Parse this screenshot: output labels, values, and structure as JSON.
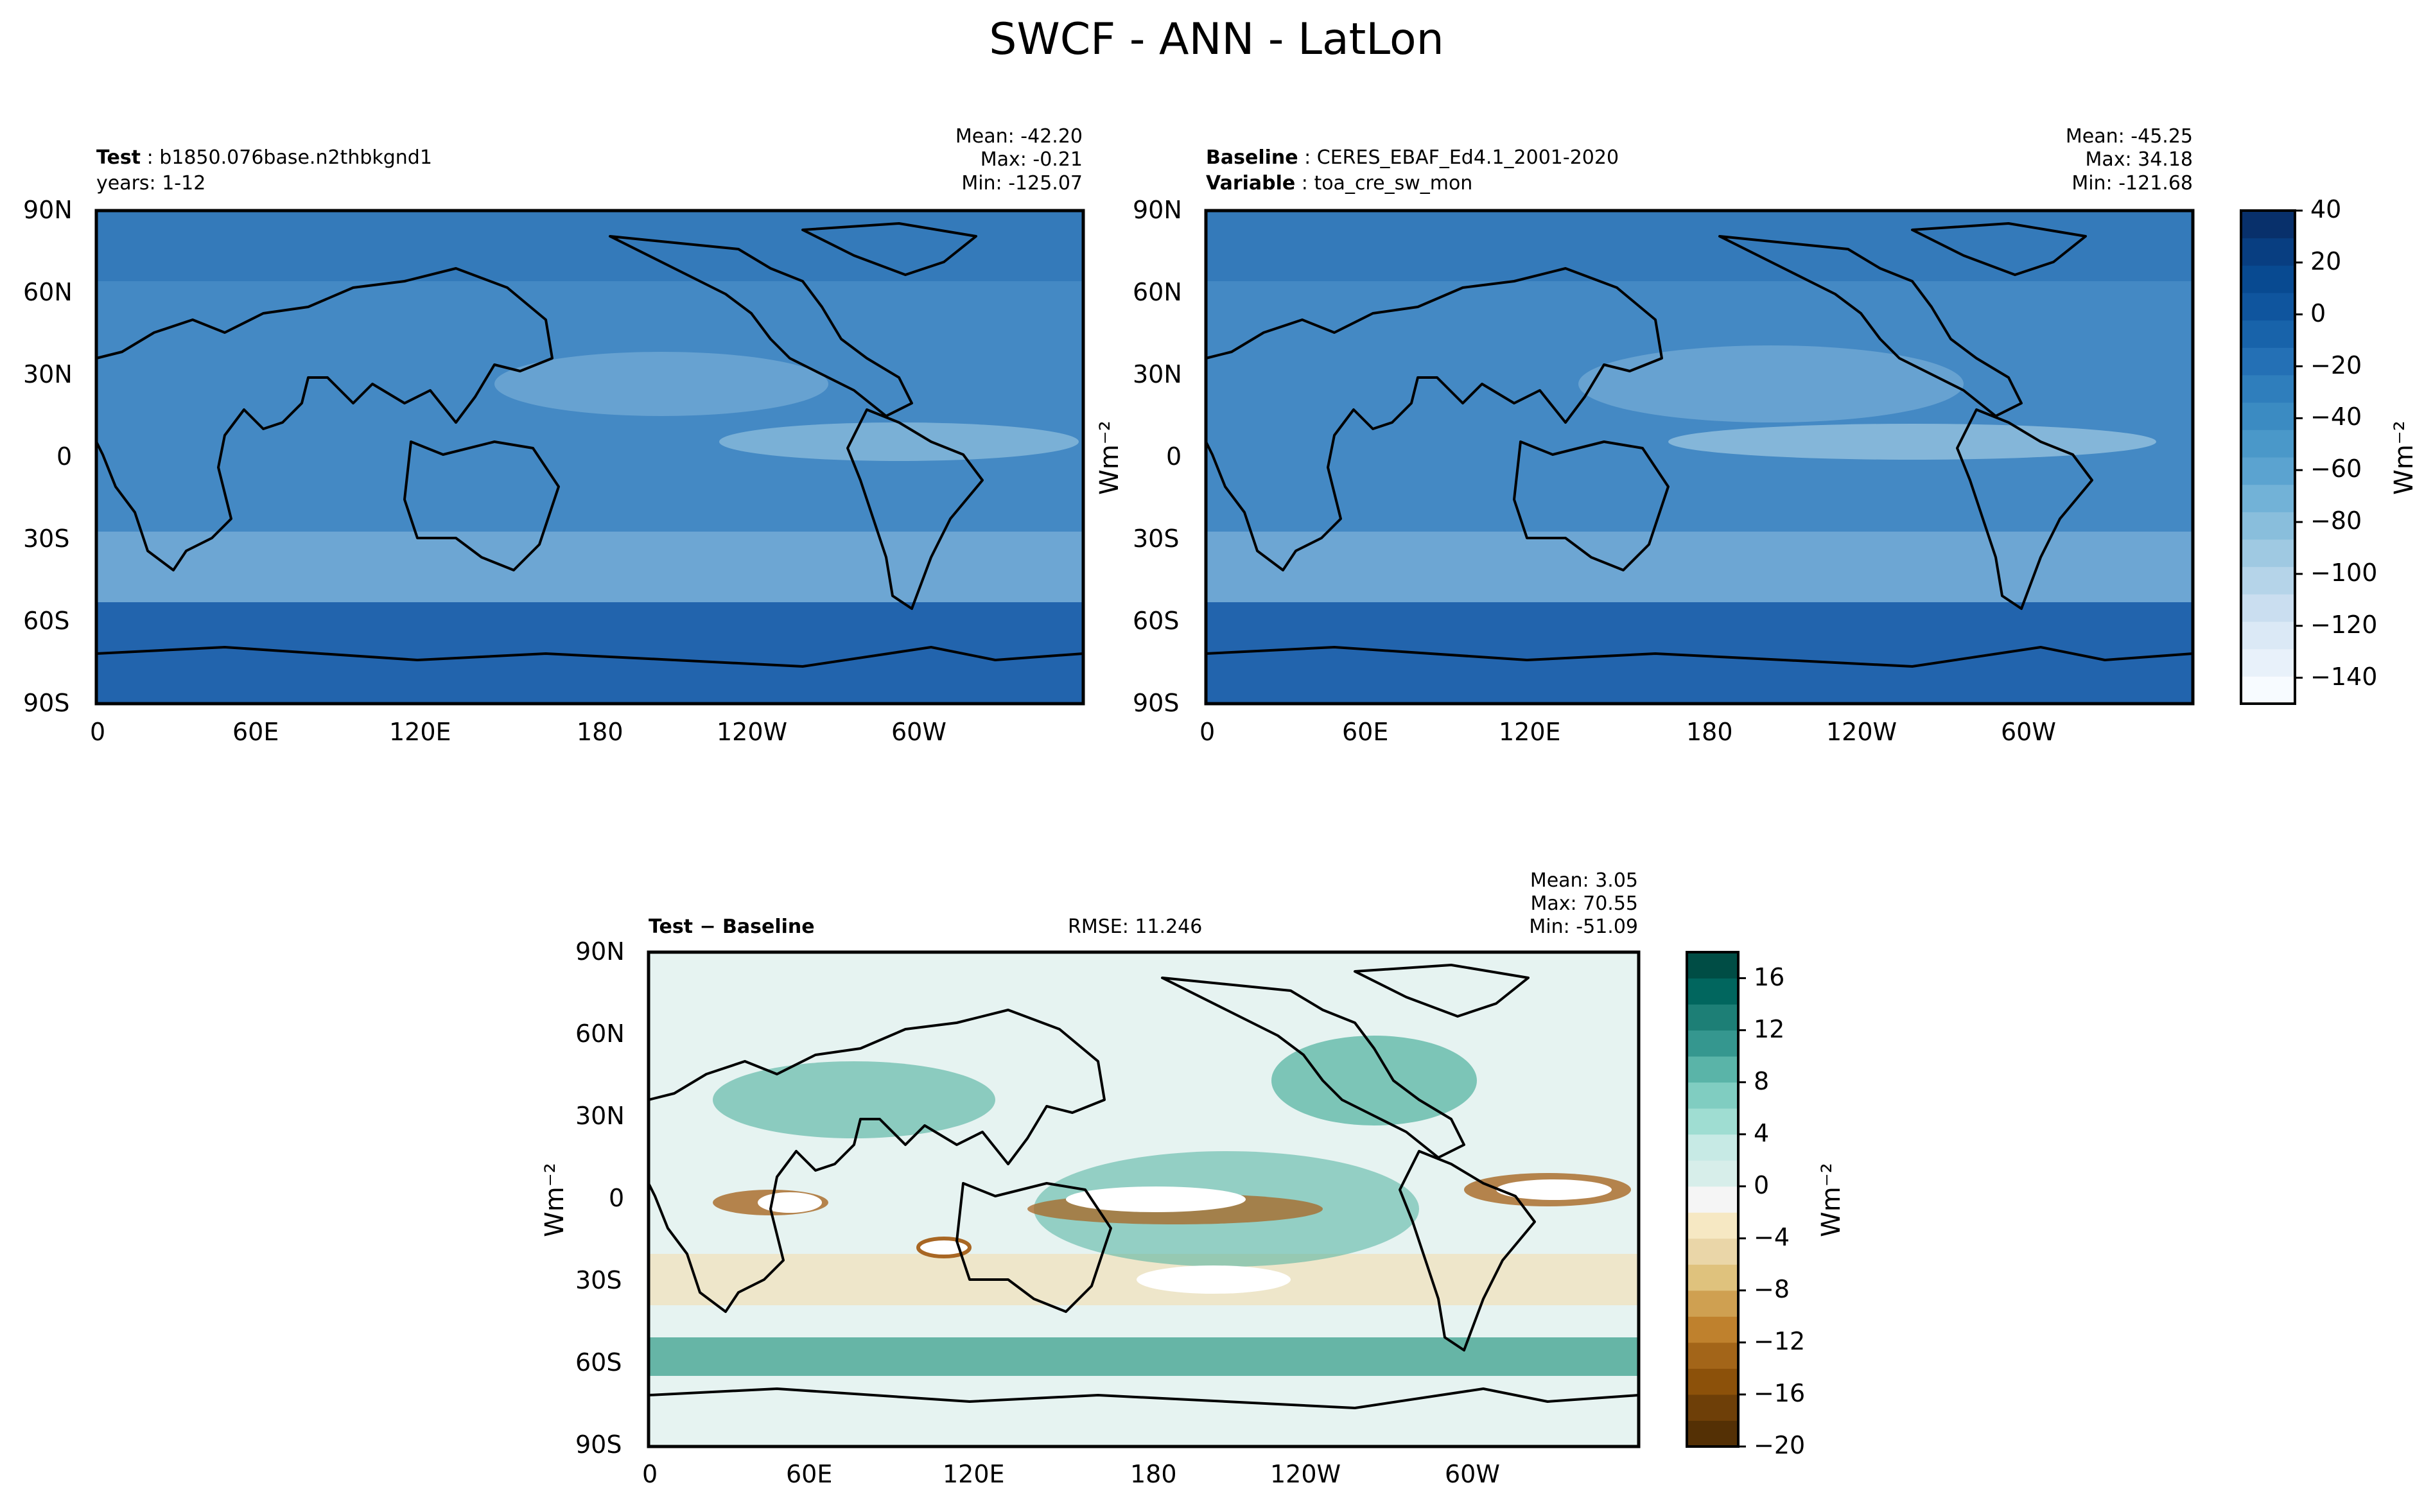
{
  "figure_title": "SWCF - ANN - LatLon",
  "panels": {
    "test": {
      "label_bold": "Test",
      "label_value": "b1850.076base.n2thbkgnd1",
      "line2": "years: 1-12",
      "mean": "Mean: -42.20",
      "max": "Max: -0.21",
      "min": "Min: -125.07"
    },
    "baseline": {
      "label_bold": "Baseline",
      "label_value": "CERES_EBAF_Ed4.1_2001-2020",
      "line2_bold": "Variable",
      "line2_value": "toa_cre_sw_mon",
      "mean": "Mean: -45.25",
      "max": "Max: 34.18",
      "min": "Min: -121.68"
    },
    "diff": {
      "label": "Test − Baseline",
      "rmse": "RMSE: 11.246",
      "mean": "Mean:  3.05",
      "max": "Max: 70.55",
      "min": "Min: -51.09"
    }
  },
  "units_label": "Wm⁻²",
  "colors": {
    "ocean_blue": "#4489c4",
    "dark_blue": "#2264ad",
    "light_blue": "#8bb9dc",
    "diff_neutral": "#e6f3f1",
    "diff_teal": "#2f9a86",
    "diff_brown": "#a86623"
  },
  "chart_data": [
    {
      "type": "heatmap",
      "name": "Test",
      "xlabel": "",
      "ylabel": "",
      "x_ticks": [
        "0",
        "60E",
        "120E",
        "180",
        "120W",
        "60W"
      ],
      "y_ticks": [
        "90N",
        "60N",
        "30N",
        "0",
        "30S",
        "60S",
        "90S"
      ],
      "xlim": [
        0,
        360
      ],
      "ylim": [
        -90,
        90
      ],
      "colorbar": "shared-blues",
      "stats": {
        "mean": -42.2,
        "max": -0.21,
        "min": -125.07
      }
    },
    {
      "type": "heatmap",
      "name": "Baseline",
      "x_ticks": [
        "0",
        "60E",
        "120E",
        "180",
        "120W",
        "60W"
      ],
      "y_ticks": [
        "90N",
        "60N",
        "30N",
        "0",
        "30S",
        "60S",
        "90S"
      ],
      "xlim": [
        0,
        360
      ],
      "ylim": [
        -90,
        90
      ],
      "colorbar": "shared-blues",
      "stats": {
        "mean": -45.25,
        "max": 34.18,
        "min": -121.68
      }
    },
    {
      "type": "heatmap",
      "name": "Test - Baseline",
      "x_ticks": [
        "0",
        "60E",
        "120E",
        "180",
        "120W",
        "60W"
      ],
      "y_ticks": [
        "90N",
        "60N",
        "30N",
        "0",
        "30S",
        "60S",
        "90S"
      ],
      "xlim": [
        0,
        360
      ],
      "ylim": [
        -90,
        90
      ],
      "colorbar": "diff-brbg",
      "stats": {
        "mean": 3.05,
        "max": 70.55,
        "min": -51.09,
        "rmse": 11.246
      }
    }
  ],
  "colorbars": {
    "blues": {
      "ticks": [
        "40",
        "20",
        "0",
        "−20",
        "−40",
        "−60",
        "−80",
        "−100",
        "−120",
        "−140"
      ],
      "range": [
        -150,
        40
      ],
      "colors": [
        "#f7fbff",
        "#e8f1fa",
        "#dbe9f6",
        "#cadef0",
        "#b5d4e9",
        "#9fc9e2",
        "#89bedc",
        "#72b2d7",
        "#5ba3d0",
        "#4a98c9",
        "#3b8bc2",
        "#2f7ebc",
        "#2470b5",
        "#1863aa",
        "#0f559e",
        "#084a91",
        "#083e81",
        "#08306b"
      ]
    },
    "diff": {
      "ticks": [
        "16",
        "12",
        "8",
        "4",
        "0",
        "−4",
        "−8",
        "−12",
        "−16",
        "−20"
      ],
      "range": [
        -20,
        18
      ],
      "colors": [
        "#543005",
        "#6e3f08",
        "#8c510a",
        "#a36519",
        "#bf812d",
        "#cfa051",
        "#dfc27d",
        "#ead6a8",
        "#f6e8c3",
        "#f5f5f5",
        "#d7eeea",
        "#c7eae5",
        "#9fddd2",
        "#80cdc1",
        "#5ab4a8",
        "#35978f",
        "#1d7f76",
        "#01665e",
        "#004d45"
      ]
    }
  }
}
